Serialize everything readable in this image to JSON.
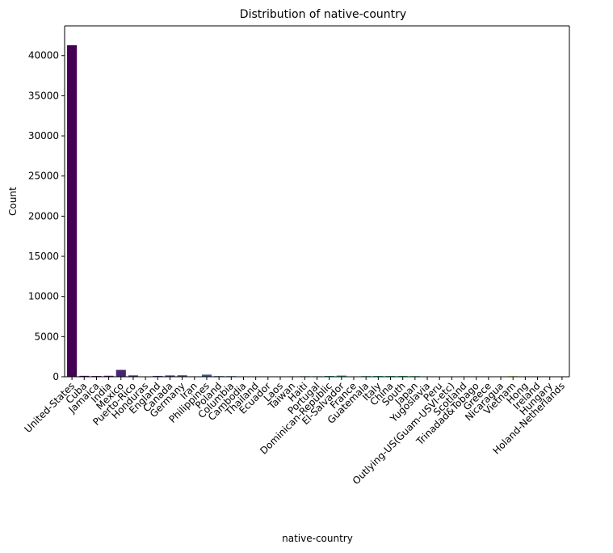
{
  "chart_data": {
    "type": "bar",
    "title": "Distribution of native-country",
    "xlabel": "native-country",
    "ylabel": "Count",
    "ylim": [
      0,
      43700
    ],
    "yticks": [
      0,
      5000,
      10000,
      15000,
      20000,
      25000,
      30000,
      35000,
      40000
    ],
    "grid": false,
    "legend": "none",
    "palette": "viridis",
    "categories": [
      "United-States",
      "Cuba",
      "Jamaica",
      "India",
      "Mexico",
      "Puerto-Rico",
      "Honduras",
      "England",
      "Canada",
      "Germany",
      "Iran",
      "Philippines",
      "Poland",
      "Columbia",
      "Cambodia",
      "Thailand",
      "Ecuador",
      "Laos",
      "Taiwan",
      "Haiti",
      "Portugal",
      "Dominican-Republic",
      "El-Salvador",
      "France",
      "Guatemala",
      "Italy",
      "China",
      "South",
      "Japan",
      "Yugoslavia",
      "Peru",
      "Outlying-US(Guam-USVI-etc)",
      "Scotland",
      "Trinadad&Tobago",
      "Greece",
      "Nicaragua",
      "Vietnam",
      "Hong",
      "Ireland",
      "Hungary",
      "Holand-Netherlands"
    ],
    "values": [
      41292,
      115,
      95,
      125,
      853,
      165,
      18,
      108,
      163,
      180,
      54,
      265,
      81,
      76,
      26,
      28,
      43,
      21,
      54,
      69,
      62,
      97,
      148,
      34,
      83,
      98,
      106,
      108,
      84,
      20,
      45,
      20,
      18,
      25,
      44,
      48,
      83,
      28,
      34,
      17,
      1
    ]
  }
}
